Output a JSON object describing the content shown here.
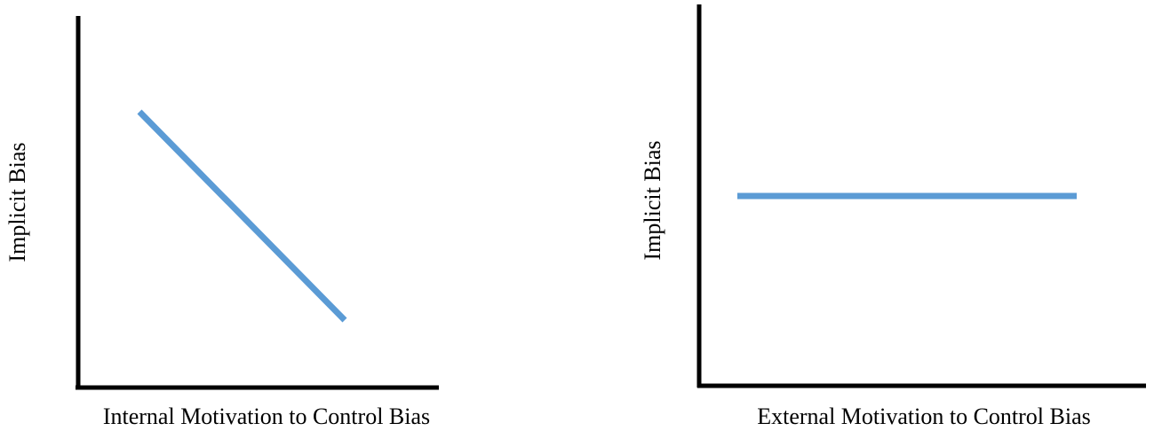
{
  "panels": [
    {
      "x_label": "Internal Motivation to Control Bias",
      "y_label": "Implicit Bias"
    },
    {
      "x_label": "External Motivation to Control Bias",
      "y_label": "Implicit Bias"
    }
  ]
}
